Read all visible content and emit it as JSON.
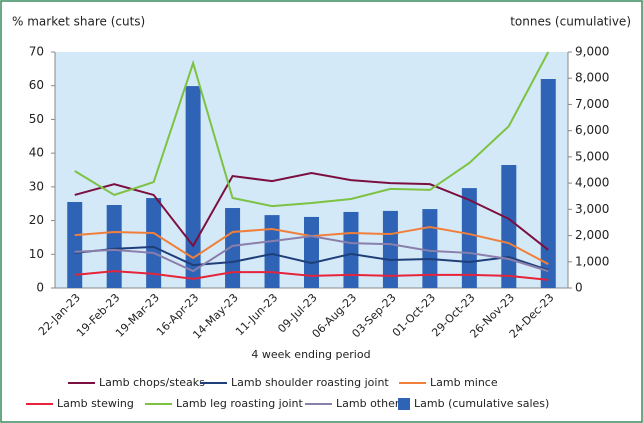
{
  "chart_data": {
    "type": "bar-line",
    "y_label": "% market share (cuts)",
    "y2_label": "tonnes (cumulative)",
    "x_label": "4 week ending period",
    "categories": [
      "22-Jan-23",
      "19-Feb-23",
      "19-Mar-23",
      "16-Apr-23",
      "14-May-23",
      "11-Jun-23",
      "09-Jul-23",
      "06-Aug-23",
      "03-Sep-23",
      "01-Oct-23",
      "29-Oct-23",
      "26-Nov-23",
      "24-Dec-23"
    ],
    "series": [
      {
        "name": "Lamb chops/steaks",
        "color": "#7b1040",
        "type": "line",
        "values": [
          27.6,
          30.8,
          27.6,
          12.5,
          33.2,
          31.7,
          34.1,
          32,
          31.1,
          30.8,
          26.1,
          20.5,
          11.3
        ]
      },
      {
        "name": "Lamb shoulder roasting joint",
        "color": "#1f3f7a",
        "type": "line",
        "values": [
          10.4,
          11.6,
          12.2,
          6.8,
          7.7,
          10.1,
          7.4,
          10.1,
          8.3,
          8.6,
          7.7,
          9.2,
          5.3
        ]
      },
      {
        "name": "Lamb mince",
        "color": "#f07f3c",
        "type": "line",
        "values": [
          15.7,
          16.6,
          16.3,
          8.9,
          16.6,
          17.5,
          15.4,
          16.3,
          16,
          18.1,
          16,
          13.3,
          7.1
        ]
      },
      {
        "name": "Lamb stewing",
        "color": "#e5243b",
        "type": "line",
        "values": [
          3.9,
          5,
          4.2,
          2.7,
          4.7,
          4.7,
          3.6,
          3.9,
          3.6,
          3.9,
          3.9,
          3.6,
          2.4
        ]
      },
      {
        "name": "Lamb leg roasting joint",
        "color": "#7dc242",
        "type": "line",
        "values": [
          34.7,
          27.6,
          31.4,
          66.7,
          26.7,
          24.3,
          25.2,
          26.4,
          29.4,
          29.1,
          37.1,
          48,
          70
        ]
      },
      {
        "name": "Lamb other",
        "color": "#8a7fab",
        "type": "line",
        "values": [
          10.7,
          11.3,
          10.4,
          5,
          12.5,
          13.9,
          15.4,
          13.3,
          13,
          11,
          10.4,
          8.6,
          5
        ]
      },
      {
        "name": "Lamb (cumulative sales)",
        "color": "#2e63b5",
        "type": "bar",
        "axis": "y2",
        "values": [
          3280,
          3165,
          3430,
          7700,
          3050,
          2780,
          2710,
          2900,
          2940,
          3010,
          3810,
          4690,
          7970
        ]
      }
    ],
    "ylim": [
      0,
      70
    ],
    "yticks": [
      0,
      10,
      20,
      30,
      40,
      50,
      60,
      70
    ],
    "y2lim": [
      0,
      9000
    ],
    "y2ticks": [
      0,
      {
        "value": 1000,
        "label": "1,000"
      },
      {
        "value": 2000,
        "label": "2,000"
      },
      {
        "value": 3000,
        "label": "3,000"
      },
      {
        "value": 4000,
        "label": "4,000"
      },
      {
        "value": 5000,
        "label": "5,000"
      },
      {
        "value": 6000,
        "label": "6,000"
      },
      {
        "value": 7000,
        "label": "7,000"
      },
      {
        "value": 8000,
        "label": "8,000"
      },
      {
        "value": 9000,
        "label": "9,000"
      }
    ],
    "grid": false,
    "legend": "bottom"
  }
}
